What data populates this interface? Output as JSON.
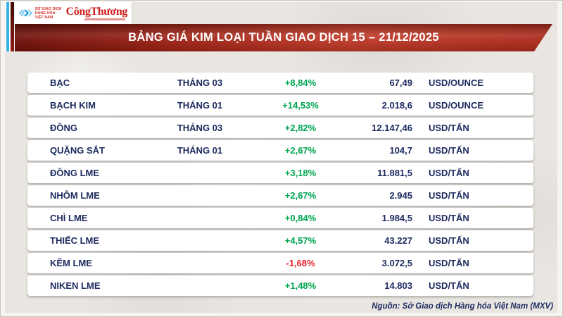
{
  "header": {
    "logo": {
      "mxv_lines": [
        "SỞ GIAO DỊCH",
        "HÀNG HÓA",
        "VIỆT NAM"
      ],
      "congthuong": "CôngThương"
    },
    "title": "BẢNG GIÁ KIM LOẠI TUẦN GIAO DỊCH 15 – 21/12/2025"
  },
  "table": {
    "rows": [
      {
        "name": "BẠC",
        "month": "THÁNG 03",
        "change": "+8,84%",
        "value": "67,49",
        "unit": "USD/OUNCE"
      },
      {
        "name": "BẠCH KIM",
        "month": "THÁNG 01",
        "change": "+14,53%",
        "value": "2.018,6",
        "unit": "USD/OUNCE"
      },
      {
        "name": "ĐỒNG",
        "month": "THÁNG 03",
        "change": "+2,82%",
        "value": "12.147,46",
        "unit": "USD/TẤN"
      },
      {
        "name": "QUẶNG SẮT",
        "month": "THÁNG 01",
        "change": "+2,67%",
        "value": "104,7",
        "unit": "USD/TẤN"
      },
      {
        "name": "ĐỒNG LME",
        "month": "",
        "change": "+3,18%",
        "value": "11.881,5",
        "unit": "USD/TẤN"
      },
      {
        "name": "NHÔM LME",
        "month": "",
        "change": "+2,67%",
        "value": "2.945",
        "unit": "USD/TẤN"
      },
      {
        "name": "CHÌ LME",
        "month": "",
        "change": "+0,84%",
        "value": "1.984,5",
        "unit": "USD/TẤN"
      },
      {
        "name": "THIẾC LME",
        "month": "",
        "change": "+4,57%",
        "value": "43.227",
        "unit": "USD/TẤN"
      },
      {
        "name": "KẼM LME",
        "month": "",
        "change": "-1,68%",
        "value": "3.072,5",
        "unit": "USD/TẤN"
      },
      {
        "name": "NIKEN LME",
        "month": "",
        "change": "+1,48%",
        "value": "14.803",
        "unit": "USD/TẤN"
      }
    ]
  },
  "footer": {
    "source": "Nguồn: Sở Giao dịch Hàng hóa Việt Nam (MXV)"
  },
  "colors": {
    "up": "#00a651",
    "down": "#ec1c24",
    "text_navy": "#1c2a5e",
    "banner_red": "#b02c1d",
    "logo_blue": "#2fa9e0"
  },
  "chart_data": {
    "type": "table",
    "title": "BẢNG GIÁ KIM LOẠI TUẦN GIAO DỊCH 15 – 21/12/2025",
    "rows": [
      [
        "BẠC",
        "THÁNG 03",
        "+8,84%",
        "67,49",
        "USD/OUNCE"
      ],
      [
        "BẠCH KIM",
        "THÁNG 01",
        "+14,53%",
        "2.018,6",
        "USD/OUNCE"
      ],
      [
        "ĐỒNG",
        "THÁNG 03",
        "+2,82%",
        "12.147,46",
        "USD/TẤN"
      ],
      [
        "QUẶNG SẮT",
        "THÁNG 01",
        "+2,67%",
        "104,7",
        "USD/TẤN"
      ],
      [
        "ĐỒNG LME",
        "",
        "+3,18%",
        "11.881,5",
        "USD/TẤN"
      ],
      [
        "NHÔM LME",
        "",
        "+2,67%",
        "2.945",
        "USD/TẤN"
      ],
      [
        "CHÌ LME",
        "",
        "+0,84%",
        "1.984,5",
        "USD/TẤN"
      ],
      [
        "THIẾC LME",
        "",
        "+4,57%",
        "43.227",
        "USD/TẤN"
      ],
      [
        "KẼM LME",
        "",
        "-1,68%",
        "3.072,5",
        "USD/TẤN"
      ],
      [
        "NIKEN LME",
        "",
        "+1,48%",
        "14.803",
        "USD/TẤN"
      ]
    ],
    "source": "Nguồn: Sở Giao dịch Hàng hóa Việt Nam (MXV)"
  }
}
